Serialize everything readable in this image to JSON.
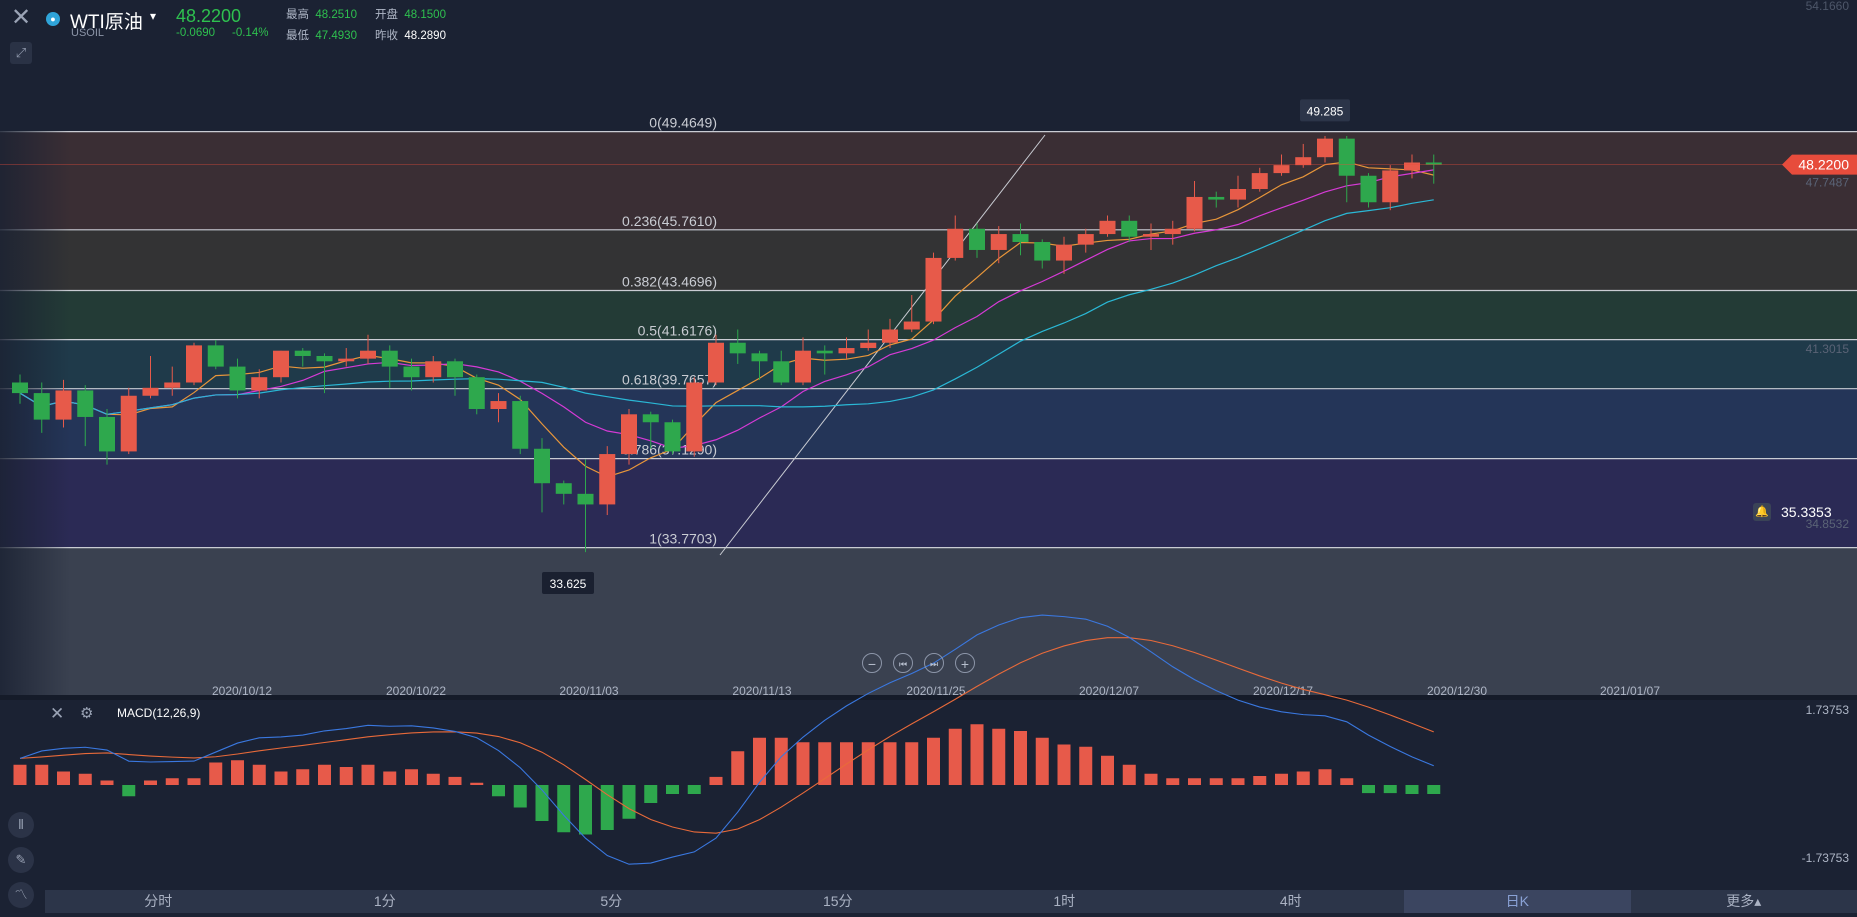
{
  "header": {
    "symbol_name": "WTI原油",
    "symbol_code": "USOIL",
    "last_price": "48.2200",
    "change": "-0.0690",
    "change_pct": "-0.14%",
    "high_label": "最高",
    "high_value": "48.2510",
    "open_label": "开盘",
    "open_value": "48.1500",
    "low_label": "最低",
    "low_value": "47.4930",
    "prev_label": "昨收",
    "prev_value": "48.2890"
  },
  "icons": {
    "close": "close-icon",
    "pin": "pin-icon",
    "caret": "caret-down-icon",
    "zoom_out": "zoom-out-icon",
    "to_start": "skip-start-icon",
    "to_end": "skip-end-icon",
    "zoom_in": "zoom-in-icon",
    "bell": "bell-icon",
    "gear": "gear-icon"
  },
  "glyphs": {
    "close": "✕",
    "pin": "⤢",
    "caret": "▾",
    "minus": "−",
    "start": "⏮",
    "end": "⏭",
    "plus": "+",
    "bell": "🔔",
    "gear": "⚙",
    "tool1": "⫴",
    "tool2": "✎",
    "tool3": "〽"
  },
  "alert_price": "35.3353",
  "indicator": {
    "name": "MACD(12,26,9)",
    "top_label": "1.73753",
    "bottom_label": "-1.73753"
  },
  "tabs": [
    {
      "label": "分时"
    },
    {
      "label": "1分"
    },
    {
      "label": "5分"
    },
    {
      "label": "15分"
    },
    {
      "label": "1时"
    },
    {
      "label": "4时"
    },
    {
      "label": "日K"
    },
    {
      "label": "更多▴"
    }
  ],
  "colors": {
    "bg": "#1b2233",
    "up": "#e75a4a",
    "down": "#2ea84d",
    "ma5": "#e8963a",
    "ma10": "#d63ad6",
    "ma20": "#2ab8d6",
    "macd_dif": "#3a78e0",
    "macd_dea": "#e86a3a",
    "price_tag": "#e74c3c"
  },
  "chart_data": {
    "type": "candlestick",
    "price_axis": {
      "top_label": "54.1660",
      "ref_label": "41.3015",
      "last_sub": "47.7487",
      "alert_sub": "34.8532"
    },
    "x_ticks": [
      "2020/10/12",
      "2020/10/22",
      "2020/11/03",
      "2020/11/13",
      "2020/11/25",
      "2020/12/07",
      "2020/12/17",
      "2020/12/30",
      "2021/01/07"
    ],
    "fibonacci": [
      {
        "ratio": "0",
        "price": 49.4649,
        "label": "0(49.4649)",
        "fill": "#3a2e34"
      },
      {
        "ratio": "0.236",
        "price": 45.761,
        "label": "0.236(45.7610)",
        "fill": "#333334"
      },
      {
        "ratio": "0.382",
        "price": 43.4696,
        "label": "0.382(43.4696)",
        "fill": "#233b36"
      },
      {
        "ratio": "0.5",
        "price": 41.6176,
        "label": "0.5(41.6176)",
        "fill": "#1f3a4a"
      },
      {
        "ratio": "0.618",
        "price": 39.7657,
        "label": "0.618(39.7657)",
        "fill": "#243558"
      },
      {
        "ratio": "0.786",
        "price": 37.129,
        "label": "0.786(37.1290)",
        "fill": "#2b2a55"
      },
      {
        "ratio": "1",
        "price": 33.7703,
        "label": "1(33.7703)",
        "fill": "#3a4150"
      }
    ],
    "high_marker": "49.285",
    "low_marker": "33.625",
    "candles": [
      [
        40.0,
        39.6,
        40.3,
        39.2
      ],
      [
        39.6,
        38.6,
        40.0,
        38.1
      ],
      [
        38.6,
        39.7,
        40.1,
        38.3
      ],
      [
        39.7,
        38.7,
        39.9,
        37.6
      ],
      [
        38.7,
        37.4,
        39.0,
        36.9
      ],
      [
        37.4,
        39.5,
        39.8,
        37.3
      ],
      [
        39.5,
        39.8,
        41.0,
        39.4
      ],
      [
        39.8,
        40.0,
        40.6,
        39.5
      ],
      [
        40.0,
        41.4,
        41.5,
        39.9
      ],
      [
        41.4,
        40.6,
        41.6,
        40.5
      ],
      [
        40.6,
        39.7,
        40.9,
        39.4
      ],
      [
        39.7,
        40.2,
        40.5,
        39.4
      ],
      [
        40.2,
        41.2,
        41.2,
        40.0
      ],
      [
        41.2,
        41.0,
        41.3,
        40.6
      ],
      [
        41.0,
        40.8,
        41.1,
        39.6
      ],
      [
        40.8,
        40.9,
        41.3,
        40.6
      ],
      [
        40.9,
        41.2,
        41.8,
        40.7
      ],
      [
        41.2,
        40.6,
        41.4,
        39.8
      ],
      [
        40.6,
        40.2,
        40.9,
        39.7
      ],
      [
        40.2,
        40.8,
        41.0,
        40.0
      ],
      [
        40.8,
        40.2,
        40.9,
        39.5
      ],
      [
        40.2,
        39.0,
        40.3,
        38.8
      ],
      [
        39.0,
        39.3,
        39.6,
        38.5
      ],
      [
        39.3,
        37.5,
        39.5,
        37.3
      ],
      [
        37.5,
        36.2,
        37.9,
        35.1
      ],
      [
        36.2,
        35.8,
        36.3,
        35.4
      ],
      [
        35.8,
        35.4,
        37.1,
        33.6
      ],
      [
        35.4,
        37.3,
        37.6,
        35.0
      ],
      [
        37.3,
        38.8,
        39.0,
        36.9
      ],
      [
        38.8,
        38.5,
        38.9,
        37.5
      ],
      [
        38.5,
        37.4,
        38.6,
        37.3
      ],
      [
        37.4,
        40.0,
        40.2,
        37.2
      ],
      [
        40.0,
        41.5,
        41.8,
        39.9
      ],
      [
        41.5,
        41.1,
        42.0,
        40.7
      ],
      [
        41.1,
        40.8,
        41.2,
        40.1
      ],
      [
        40.8,
        40.0,
        41.2,
        39.9
      ],
      [
        40.0,
        41.2,
        41.7,
        39.9
      ],
      [
        41.2,
        41.1,
        41.4,
        40.3
      ],
      [
        41.1,
        41.3,
        41.7,
        40.9
      ],
      [
        41.3,
        41.5,
        42.0,
        41.2
      ],
      [
        41.5,
        42.0,
        42.4,
        41.3
      ],
      [
        42.0,
        42.3,
        43.3,
        41.9
      ],
      [
        42.3,
        44.7,
        44.9,
        42.2
      ],
      [
        44.7,
        45.8,
        46.3,
        44.6
      ],
      [
        45.8,
        45.0,
        46.0,
        44.7
      ],
      [
        45.0,
        45.6,
        45.9,
        44.5
      ],
      [
        45.6,
        45.3,
        46.0,
        44.8
      ],
      [
        45.3,
        44.6,
        45.4,
        44.3
      ],
      [
        44.6,
        45.2,
        45.5,
        44.1
      ],
      [
        45.2,
        45.6,
        45.8,
        44.9
      ],
      [
        45.6,
        46.1,
        46.3,
        45.5
      ],
      [
        46.1,
        45.5,
        46.3,
        45.3
      ],
      [
        45.5,
        45.6,
        46.0,
        45.0
      ],
      [
        45.6,
        45.8,
        46.1,
        45.2
      ],
      [
        45.8,
        47.0,
        47.6,
        45.7
      ],
      [
        47.0,
        46.9,
        47.2,
        46.6
      ],
      [
        46.9,
        47.3,
        47.8,
        46.6
      ],
      [
        47.3,
        47.9,
        48.1,
        47.2
      ],
      [
        47.9,
        48.2,
        48.6,
        47.8
      ],
      [
        48.2,
        48.5,
        49.0,
        48.1
      ],
      [
        48.5,
        49.2,
        49.3,
        48.3
      ],
      [
        49.2,
        47.8,
        49.3,
        46.8
      ],
      [
        47.8,
        46.8,
        47.9,
        46.6
      ],
      [
        46.8,
        48.0,
        48.2,
        46.5
      ],
      [
        48.0,
        48.3,
        48.6,
        47.7
      ],
      [
        48.3,
        48.22,
        48.6,
        47.5
      ]
    ],
    "macd_hist": [
      0.45,
      0.45,
      0.3,
      0.25,
      0.1,
      -0.25,
      0.1,
      0.15,
      0.15,
      0.5,
      0.55,
      0.45,
      0.3,
      0.35,
      0.45,
      0.4,
      0.45,
      0.3,
      0.35,
      0.25,
      0.18,
      0.05,
      -0.25,
      -0.5,
      -0.8,
      -1.05,
      -1.1,
      -1.0,
      -0.75,
      -0.4,
      -0.2,
      -0.2,
      0.18,
      0.75,
      1.05,
      1.05,
      0.95,
      0.95,
      0.95,
      0.95,
      0.95,
      0.95,
      1.05,
      1.25,
      1.35,
      1.25,
      1.2,
      1.05,
      0.9,
      0.85,
      0.65,
      0.45,
      0.25,
      0.15,
      0.15,
      0.15,
      0.15,
      0.2,
      0.25,
      0.3,
      0.35,
      0.15,
      -0.18,
      -0.18,
      -0.2,
      -0.2
    ]
  }
}
